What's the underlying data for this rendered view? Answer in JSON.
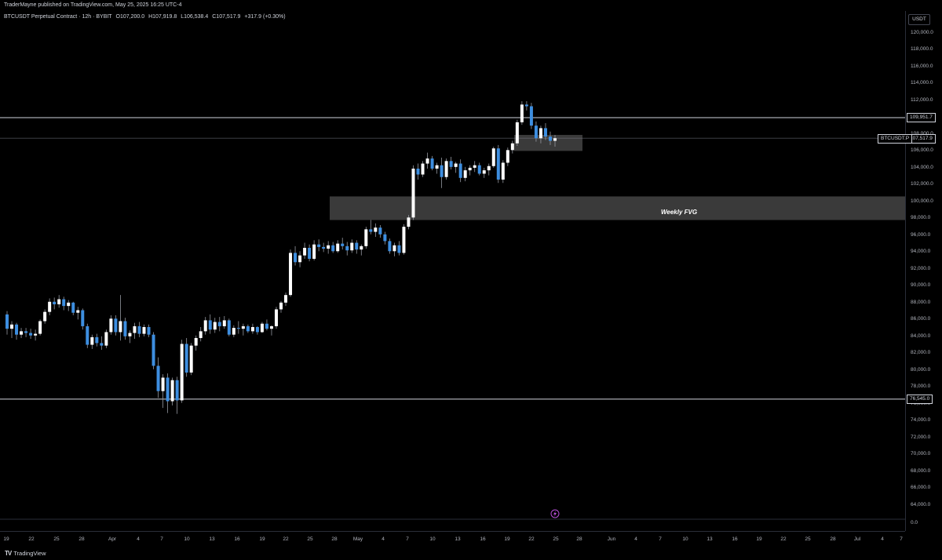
{
  "header": {
    "publisher_line": "TraderMayne published on TradingView.com, May 25, 2025 16:25 UTC-4"
  },
  "symbol_info": {
    "name": "BTCUSDT Perpetual Contract · 12h · BYBIT",
    "open": "O107,200.0",
    "high": "H107,919.8",
    "low": "L106,538.4",
    "close": "C107,517.9",
    "change": "+317.9 (+0.30%)"
  },
  "price_scale": {
    "currency": "USDT",
    "ticks": [
      "120,000.0",
      "118,000.0",
      "116,000.0",
      "114,000.0",
      "112,000.0",
      "110,000.0",
      "108,000.0",
      "106,000.0",
      "104,000.0",
      "102,000.0",
      "100,000.0",
      "98,000.0",
      "96,000.0",
      "94,000.0",
      "92,000.0",
      "90,000.0",
      "88,000.0",
      "86,000.0",
      "84,000.0",
      "82,000.0",
      "80,000.0",
      "78,000.0",
      "76,000.0",
      "74,000.0",
      "72,000.0",
      "70,000.0",
      "68,000.0",
      "66,000.0",
      "64,000.0",
      "0.0"
    ],
    "level_high_label": "109,951.7",
    "current_price_label": "107,517.9",
    "current_symbol_label": "BTCUSDT.P",
    "level_low_label": "76,545.0"
  },
  "time_scale": {
    "ticks": [
      "19",
      "22",
      "25",
      "28",
      "Apr",
      "4",
      "7",
      "10",
      "13",
      "16",
      "19",
      "22",
      "25",
      "28",
      "May",
      "4",
      "7",
      "10",
      "13",
      "16",
      "19",
      "22",
      "25",
      "28",
      "Jun",
      "4",
      "7",
      "10",
      "13",
      "16",
      "19",
      "22",
      "25",
      "28",
      "Jul",
      "4",
      "7"
    ]
  },
  "annotations": {
    "fvg_label": "Weekly FVG"
  },
  "footer": {
    "logo_text": "TradingView"
  },
  "colors": {
    "up": "#ffffff",
    "down": "#3d8ee0",
    "zone": "#3a3a3a",
    "level": "#d1d4dc"
  },
  "chart_data": {
    "type": "candlestick",
    "ylim": [
      63000,
      121000
    ],
    "levels": [
      109951.7,
      107517.9,
      76545.0
    ],
    "zones": [
      {
        "name": "Weekly FVG",
        "y0": 97800,
        "y1": 100600
      },
      {
        "y0": 106000,
        "y1": 107900
      }
    ],
    "candles": [
      [
        86600,
        87000,
        84200,
        84900
      ],
      [
        84900,
        85800,
        83800,
        85400
      ],
      [
        85400,
        85600,
        83600,
        84200
      ],
      [
        84200,
        85000,
        83800,
        84600
      ],
      [
        84600,
        85000,
        83900,
        84400
      ],
      [
        84400,
        84900,
        83700,
        84100
      ],
      [
        84100,
        84800,
        83500,
        84300
      ],
      [
        84300,
        86000,
        84100,
        85800
      ],
      [
        85800,
        87200,
        85500,
        86900
      ],
      [
        86900,
        88500,
        86500,
        88100
      ],
      [
        88100,
        88600,
        87200,
        87800
      ],
      [
        87800,
        88900,
        87400,
        88400
      ],
      [
        88400,
        88700,
        87100,
        87600
      ],
      [
        87600,
        88300,
        87000,
        88000
      ],
      [
        88000,
        88100,
        86500,
        86800
      ],
      [
        86800,
        87500,
        86000,
        87100
      ],
      [
        87100,
        87300,
        84800,
        85200
      ],
      [
        85200,
        85500,
        82600,
        83000
      ],
      [
        83000,
        84200,
        82500,
        83900
      ],
      [
        83900,
        84300,
        82800,
        83200
      ],
      [
        83200,
        84000,
        82400,
        82900
      ],
      [
        82900,
        84800,
        82600,
        84500
      ],
      [
        84500,
        86500,
        84200,
        86100
      ],
      [
        86100,
        86500,
        84100,
        84500
      ],
      [
        84500,
        88900,
        83500,
        85800
      ],
      [
        85800,
        86200,
        83600,
        84000
      ],
      [
        84000,
        84700,
        83200,
        84400
      ],
      [
        84400,
        85600,
        83700,
        85200
      ],
      [
        85200,
        85700,
        83900,
        84300
      ],
      [
        84300,
        85400,
        84000,
        85100
      ],
      [
        85100,
        85400,
        83900,
        84200
      ],
      [
        84200,
        84500,
        80100,
        80500
      ],
      [
        80500,
        81500,
        76700,
        77500
      ],
      [
        77500,
        79500,
        75500,
        79100
      ],
      [
        79100,
        79600,
        74900,
        76300
      ],
      [
        76300,
        79100,
        75800,
        78800
      ],
      [
        78800,
        79200,
        74800,
        76400
      ],
      [
        76400,
        83600,
        76100,
        83100
      ],
      [
        83100,
        83800,
        79200,
        79700
      ],
      [
        79700,
        83200,
        79400,
        82900
      ],
      [
        82900,
        84100,
        82300,
        83800
      ],
      [
        83800,
        85100,
        83400,
        84600
      ],
      [
        84600,
        86300,
        84200,
        85900
      ],
      [
        85900,
        86600,
        84300,
        84800
      ],
      [
        84800,
        86200,
        84400,
        85700
      ],
      [
        85700,
        86300,
        84600,
        85200
      ],
      [
        85200,
        86400,
        84900,
        85900
      ],
      [
        85900,
        86100,
        84000,
        84200
      ],
      [
        84200,
        85300,
        83900,
        85000
      ],
      [
        85000,
        85800,
        84300,
        84900
      ],
      [
        84900,
        85500,
        84100,
        85200
      ],
      [
        85200,
        85400,
        84400,
        84600
      ],
      [
        84600,
        85500,
        84300,
        85100
      ],
      [
        85100,
        85200,
        84200,
        84500
      ],
      [
        84500,
        85700,
        84400,
        85500
      ],
      [
        85500,
        86000,
        84700,
        84900
      ],
      [
        84900,
        85300,
        84100,
        85200
      ],
      [
        85200,
        87500,
        84900,
        87200
      ],
      [
        87200,
        88200,
        86800,
        88000
      ],
      [
        88000,
        89200,
        87600,
        88900
      ],
      [
        88900,
        94300,
        88700,
        93900
      ],
      [
        93900,
        94700,
        92400,
        92800
      ],
      [
        92800,
        94100,
        92200,
        93600
      ],
      [
        93600,
        95100,
        93200,
        94500
      ],
      [
        94500,
        94900,
        92900,
        93200
      ],
      [
        93200,
        95400,
        93000,
        94900
      ],
      [
        94900,
        95500,
        94100,
        94600
      ],
      [
        94600,
        95100,
        94000,
        94400
      ],
      [
        94400,
        95300,
        93800,
        94800
      ],
      [
        94800,
        95200,
        93900,
        94100
      ],
      [
        94100,
        95400,
        93900,
        95000
      ],
      [
        95000,
        95700,
        94300,
        94700
      ],
      [
        94700,
        95200,
        93600,
        94200
      ],
      [
        94200,
        95500,
        93900,
        95100
      ],
      [
        95100,
        95400,
        93800,
        94300
      ],
      [
        94300,
        94900,
        93600,
        94700
      ],
      [
        94700,
        97000,
        94400,
        96700
      ],
      [
        96700,
        97800,
        96100,
        96400
      ],
      [
        96400,
        97400,
        95800,
        96900
      ],
      [
        96900,
        97200,
        95700,
        96100
      ],
      [
        96100,
        96400,
        94900,
        95300
      ],
      [
        95300,
        95600,
        93800,
        94100
      ],
      [
        94100,
        95100,
        93500,
        94800
      ],
      [
        94800,
        95300,
        93600,
        93900
      ],
      [
        93900,
        97300,
        93700,
        97000
      ],
      [
        97000,
        98400,
        96700,
        98100
      ],
      [
        98100,
        104300,
        97800,
        103900
      ],
      [
        103900,
        104500,
        102600,
        103200
      ],
      [
        103200,
        104800,
        102900,
        104500
      ],
      [
        104500,
        105800,
        103900,
        105100
      ],
      [
        105100,
        105400,
        103700,
        103900
      ],
      [
        103900,
        104600,
        103300,
        104300
      ],
      [
        104300,
        105200,
        101600,
        102900
      ],
      [
        102900,
        105100,
        102600,
        104800
      ],
      [
        104800,
        105300,
        103800,
        104100
      ],
      [
        104100,
        104700,
        103400,
        104500
      ],
      [
        104500,
        105000,
        102300,
        102800
      ],
      [
        102800,
        104100,
        102400,
        103700
      ],
      [
        103700,
        104300,
        103100,
        104000
      ],
      [
        104000,
        104800,
        103500,
        104300
      ],
      [
        104300,
        104600,
        103100,
        103300
      ],
      [
        103300,
        104000,
        102800,
        103700
      ],
      [
        103700,
        104500,
        103100,
        104200
      ],
      [
        104200,
        106500,
        104000,
        106300
      ],
      [
        106300,
        106700,
        102200,
        102600
      ],
      [
        102600,
        104900,
        102200,
        104600
      ],
      [
        104600,
        106400,
        104200,
        106100
      ],
      [
        106100,
        107200,
        105700,
        106900
      ],
      [
        106900,
        109700,
        106600,
        109400
      ],
      [
        109400,
        111900,
        109100,
        111500
      ],
      [
        111500,
        111900,
        110800,
        111300
      ],
      [
        111300,
        111700,
        108600,
        109000
      ],
      [
        109000,
        109500,
        107100,
        107500
      ],
      [
        107500,
        109000,
        106900,
        108700
      ],
      [
        108700,
        109300,
        107300,
        107700
      ],
      [
        107700,
        108300,
        106700,
        107200
      ],
      [
        107200,
        107900,
        106500,
        107500
      ]
    ]
  }
}
